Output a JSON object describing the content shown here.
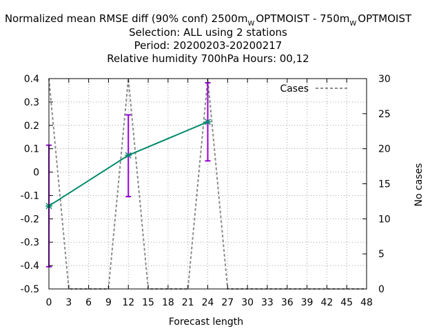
{
  "chart_data": {
    "type": "line",
    "title_lines": [
      "Normalized mean RMSE diff (90% conf) 2500m",
      "Selection: ALL using     2 stations",
      "Period: 20200203-20200217",
      "Relative humidity 700hPa   Hours:  00,12"
    ],
    "title_parts": {
      "lead": "Normalized mean RMSE diff (90% conf) 2500m",
      "sub1": "W",
      "mid": "OPTMOIST - 750m",
      "sub2": "W",
      "tail": "OPTMOIST"
    },
    "xlabel": "Forecast length",
    "ylabel_left": "",
    "ylabel_right": "No cases",
    "xlim": [
      0,
      48
    ],
    "ylim": [
      -0.5,
      0.4
    ],
    "y2lim": [
      0,
      30
    ],
    "xticks": [
      0,
      3,
      6,
      9,
      12,
      15,
      18,
      21,
      24,
      27,
      30,
      33,
      36,
      39,
      42,
      45,
      48
    ],
    "yticks": [
      -0.5,
      -0.4,
      -0.3,
      -0.2,
      -0.1,
      0,
      0.1,
      0.2,
      0.3,
      0.4
    ],
    "y2ticks": [
      0,
      5,
      10,
      15,
      20,
      25,
      30
    ],
    "grid": true,
    "legend_position": "top-right",
    "series": [
      {
        "name": "",
        "color": "#008b6b",
        "x": [
          0,
          12,
          24
        ],
        "y": [
          -0.145,
          0.072,
          0.215
        ],
        "error_low": [
          -0.405,
          -0.105,
          0.048
        ],
        "error_high": [
          0.115,
          0.245,
          0.382
        ],
        "error_color": "#9400d3"
      },
      {
        "name": "Cases",
        "color": "#8c8c8c",
        "dashed": true,
        "axis": "right",
        "x": [
          0,
          3,
          9,
          12,
          15,
          21,
          24,
          27,
          48
        ],
        "y": [
          30,
          0,
          0,
          30,
          0,
          0,
          30,
          0,
          0
        ]
      }
    ]
  }
}
